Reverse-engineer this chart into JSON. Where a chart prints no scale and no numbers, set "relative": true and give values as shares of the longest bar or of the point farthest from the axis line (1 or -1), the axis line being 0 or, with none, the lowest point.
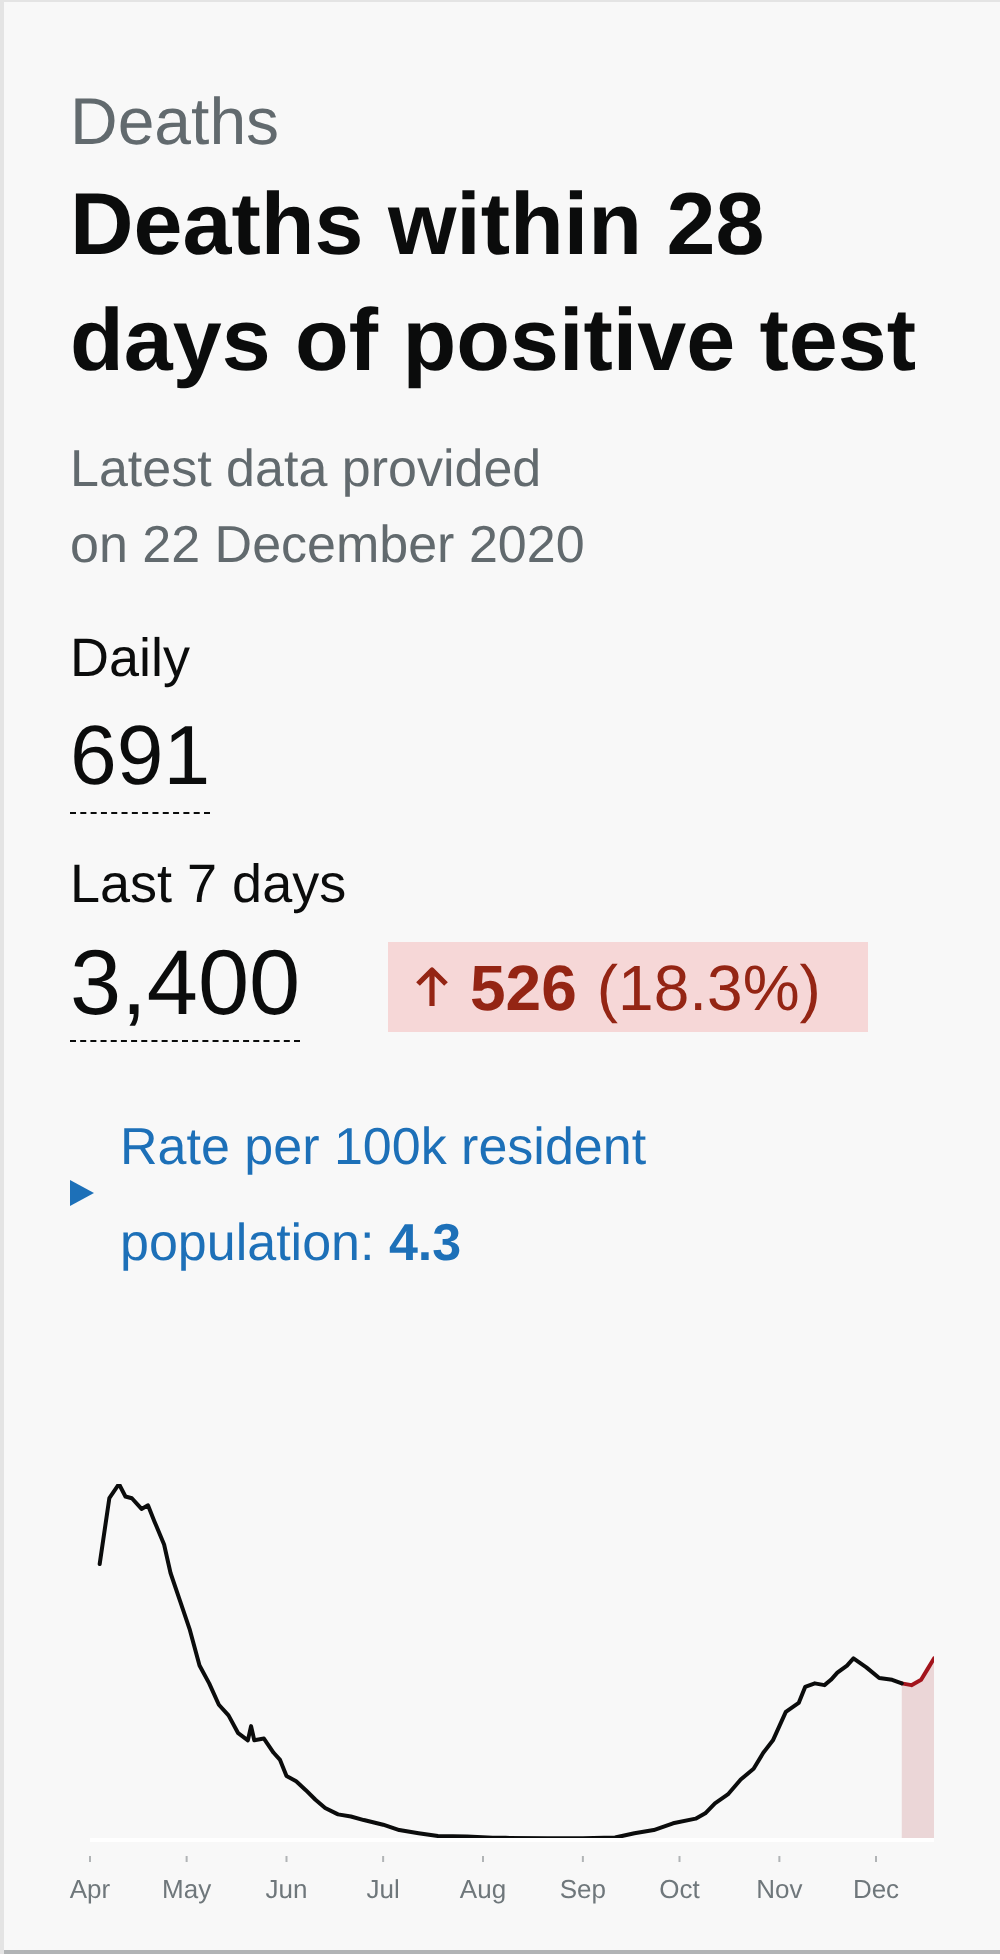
{
  "chart_data": {
    "type": "line",
    "title": "Deaths within 28 days of positive test",
    "subtitle": "Latest data provided on 22 December 2020",
    "annotations": [
      "Deaths",
      "Daily",
      "691",
      "Last 7 days",
      "3,400",
      "526",
      "(18.3%)",
      "Rate per 100k resident population:",
      "4.3"
    ],
    "relative": true,
    "marker": "none",
    "xlim": [
      "2020-04-01",
      "2020-12-19"
    ],
    "xticks": [
      {
        "value": "2020-04-01",
        "label": "Apr"
      },
      {
        "value": "2020-05-01",
        "label": "May"
      },
      {
        "value": "2020-06-01",
        "label": "Jun"
      },
      {
        "value": "2020-07-01",
        "label": "Jul"
      },
      {
        "value": "2020-08-01",
        "label": "Aug"
      },
      {
        "value": "2020-09-01",
        "label": "Sep"
      },
      {
        "value": "2020-10-01",
        "label": "Oct"
      },
      {
        "value": "2020-11-01",
        "label": "Nov"
      },
      {
        "value": "2020-12-01",
        "label": "Dec"
      }
    ],
    "series": [
      {
        "color": "#0b0c0c",
        "x": [
          "2020-04-04",
          "2020-04-07",
          "2020-04-10",
          "2020-04-12",
          "2020-04-14",
          "2020-04-17",
          "2020-04-19",
          "2020-04-21",
          "2020-04-24",
          "2020-04-26",
          "2020-04-29",
          "2020-05-02",
          "2020-05-05",
          "2020-05-08",
          "2020-05-11",
          "2020-05-14",
          "2020-05-17",
          "2020-05-20",
          "2020-05-21",
          "2020-05-22",
          "2020-05-25",
          "2020-05-28",
          "2020-05-30",
          "2020-06-01",
          "2020-06-04",
          "2020-06-07",
          "2020-06-10",
          "2020-06-13",
          "2020-06-17",
          "2020-06-21",
          "2020-06-25",
          "2020-07-01",
          "2020-07-06",
          "2020-07-12",
          "2020-07-18",
          "2020-07-27",
          "2020-08-04",
          "2020-08-08",
          "2020-08-21",
          "2020-09-01",
          "2020-09-11",
          "2020-09-17",
          "2020-09-23",
          "2020-09-29",
          "2020-10-06",
          "2020-10-09",
          "2020-10-12",
          "2020-10-16",
          "2020-10-20",
          "2020-10-24",
          "2020-10-27",
          "2020-10-30",
          "2020-11-01",
          "2020-11-03",
          "2020-11-07",
          "2020-11-09",
          "2020-11-12",
          "2020-11-15",
          "2020-11-17",
          "2020-11-19",
          "2020-11-22",
          "2020-11-24",
          "2020-11-28",
          "2020-12-02",
          "2020-12-06",
          "2020-12-09"
        ],
        "values": [
          0.775,
          0.96,
          1,
          0.965,
          0.96,
          0.93,
          0.94,
          0.895,
          0.83,
          0.75,
          0.67,
          0.59,
          0.49,
          0.44,
          0.38,
          0.35,
          0.3,
          0.28,
          0.32,
          0.28,
          0.285,
          0.245,
          0.225,
          0.18,
          0.165,
          0.14,
          0.113,
          0.09,
          0.072,
          0.066,
          0.056,
          0.043,
          0.028,
          0.019,
          0.011,
          0.01,
          0.006,
          0.006,
          0.005,
          0.005,
          0.007,
          0.019,
          0.028,
          0.047,
          0.06,
          0.075,
          0.103,
          0.128,
          0.17,
          0.2,
          0.245,
          0.28,
          0.32,
          0.36,
          0.385,
          0.43,
          0.44,
          0.435,
          0.45,
          0.47,
          0.49,
          0.51,
          0.485,
          0.455,
          0.45,
          0.44
        ]
      },
      {
        "type": "area",
        "color": "#a3141c",
        "x": [
          "2020-12-09",
          "2020-12-12",
          "2020-12-15",
          "2020-12-17",
          "2020-12-19"
        ],
        "values": [
          0.44,
          0.435,
          0.45,
          0.48,
          0.51
        ]
      }
    ]
  }
}
